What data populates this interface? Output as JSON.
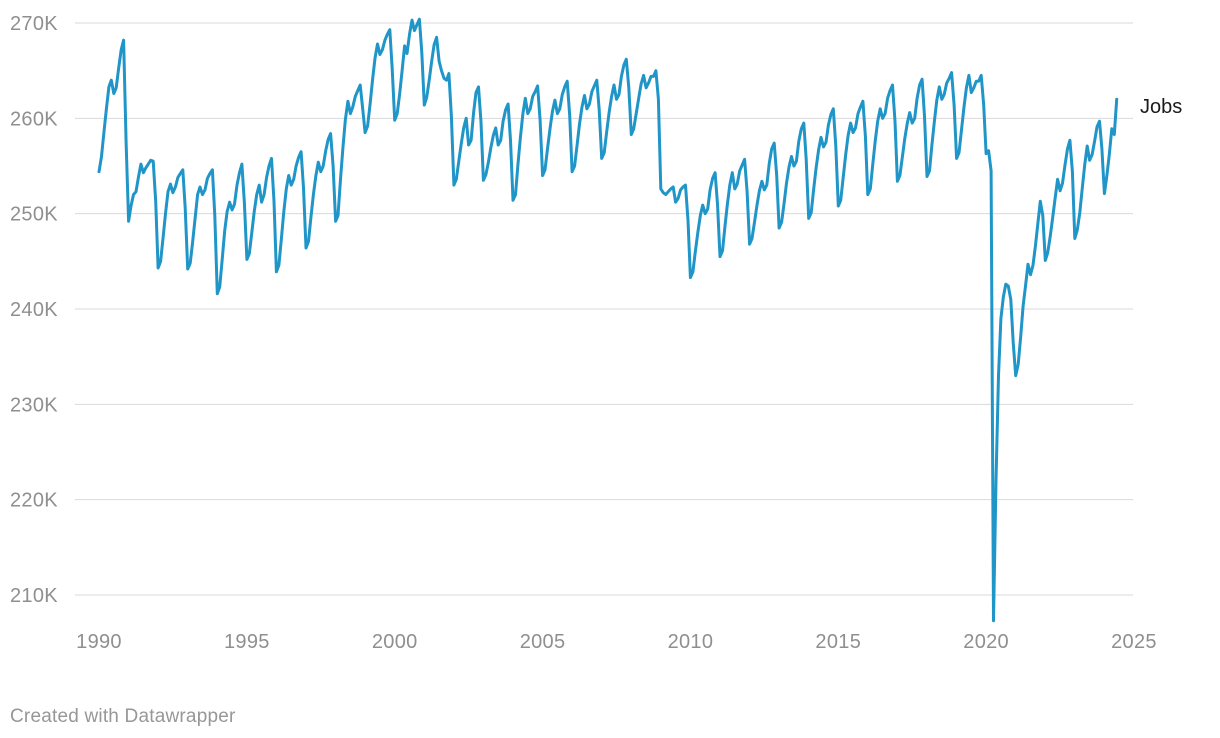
{
  "page": {
    "background": "#ffffff",
    "footer_credit": "Created with Datawrapper"
  },
  "chart_data": {
    "type": "line",
    "title": "",
    "xlabel": "",
    "ylabel": "",
    "grid": "horizontal",
    "legend_position": "line-end-label",
    "line_color": "#2095c8",
    "grid_color": "#d9d9d9",
    "axis_text_color": "#8f8f8f",
    "label_text_color": "#1a1a1a",
    "footer_text_color": "#979797",
    "ylim": [
      206,
      271.5
    ],
    "xlim": [
      1989.2,
      2025.5
    ],
    "y_ticks": {
      "values": [
        270,
        260,
        250,
        240,
        230,
        220,
        210
      ],
      "labels": [
        "270K",
        "260K",
        "250K",
        "240K",
        "230K",
        "220K",
        "210K"
      ]
    },
    "x_ticks": {
      "values": [
        1990,
        1995,
        2000,
        2005,
        2010,
        2015,
        2020,
        2025
      ],
      "labels": [
        "1990",
        "1995",
        "2000",
        "2005",
        "2010",
        "2015",
        "2020",
        "2025"
      ]
    },
    "series": [
      {
        "name": "Jobs",
        "unit": "thousands (K)",
        "start": "1990-01",
        "frequency": "monthly",
        "values": [
          254.4,
          256.0,
          258.5,
          261.0,
          263.3,
          264.0,
          262.6,
          263.2,
          265.3,
          267.2,
          268.2,
          257.5,
          249.2,
          250.8,
          252.0,
          252.3,
          253.8,
          255.2,
          254.3,
          254.8,
          255.2,
          255.6,
          255.5,
          251.3,
          244.3,
          245.0,
          247.5,
          250.0,
          252.3,
          253.1,
          252.2,
          252.8,
          253.8,
          254.2,
          254.6,
          250.6,
          244.2,
          244.8,
          247.0,
          249.5,
          252.0,
          252.8,
          252.0,
          252.5,
          253.7,
          254.2,
          254.6,
          249.8,
          241.6,
          242.3,
          245.2,
          248.2,
          250.2,
          251.2,
          250.4,
          251.0,
          253.0,
          254.3,
          255.2,
          251.1,
          245.2,
          245.8,
          248.0,
          250.2,
          252.0,
          253.0,
          251.2,
          252.0,
          253.8,
          255.0,
          255.8,
          251.3,
          243.9,
          244.6,
          247.4,
          250.2,
          252.6,
          254.0,
          253.0,
          253.6,
          255.0,
          255.9,
          256.5,
          252.7,
          246.4,
          247.1,
          249.6,
          252.0,
          254.0,
          255.4,
          254.4,
          255.0,
          256.6,
          257.8,
          258.4,
          255.0,
          249.2,
          249.8,
          253.6,
          257.0,
          259.9,
          261.8,
          260.5,
          261.2,
          262.3,
          262.9,
          263.5,
          261.0,
          258.5,
          259.2,
          261.5,
          264.0,
          266.3,
          267.8,
          266.7,
          267.2,
          268.2,
          268.8,
          269.3,
          265.2,
          259.8,
          260.5,
          262.5,
          265.0,
          267.6,
          266.8,
          268.8,
          270.3,
          269.2,
          269.8,
          270.4,
          266.9,
          261.4,
          262.2,
          264.0,
          266.0,
          267.7,
          268.5,
          266.0,
          265.0,
          264.2,
          264.0,
          264.7,
          260.2,
          253.0,
          253.6,
          255.5,
          257.3,
          259.0,
          260.0,
          257.2,
          257.7,
          260.6,
          262.7,
          263.3,
          259.6,
          253.5,
          254.1,
          255.4,
          256.9,
          258.2,
          259.0,
          257.2,
          257.7,
          259.7,
          260.9,
          261.5,
          257.7,
          251.4,
          252.0,
          255.1,
          258.0,
          260.5,
          262.1,
          260.5,
          261.0,
          262.3,
          262.8,
          263.4,
          259.8,
          254.0,
          254.6,
          256.8,
          258.9,
          260.7,
          261.9,
          260.5,
          261.0,
          262.5,
          263.3,
          263.9,
          260.3,
          254.4,
          255.0,
          257.2,
          259.4,
          261.2,
          262.4,
          261.0,
          261.5,
          262.8,
          263.4,
          264.0,
          260.9,
          255.8,
          256.4,
          258.5,
          260.6,
          262.3,
          263.5,
          262.0,
          262.5,
          264.4,
          265.6,
          266.2,
          263.2,
          258.3,
          258.9,
          260.5,
          262.1,
          263.6,
          264.5,
          263.2,
          263.7,
          264.4,
          264.4,
          265.0,
          262.0,
          252.6,
          252.2,
          252.0,
          252.3,
          252.6,
          252.8,
          251.2,
          251.6,
          252.5,
          252.8,
          253.0,
          249.3,
          243.3,
          243.9,
          246.0,
          248.0,
          249.8,
          250.9,
          250.0,
          250.5,
          252.5,
          253.7,
          254.3,
          251.0,
          245.5,
          246.1,
          248.6,
          251.0,
          253.0,
          254.3,
          252.6,
          253.1,
          254.5,
          255.1,
          255.7,
          252.3,
          246.8,
          247.4,
          249.1,
          250.9,
          252.4,
          253.4,
          252.5,
          253.0,
          255.3,
          256.8,
          257.4,
          254.0,
          248.5,
          249.1,
          251.1,
          253.2,
          254.9,
          256.0,
          255.0,
          255.5,
          257.6,
          258.9,
          259.5,
          255.7,
          249.5,
          250.1,
          252.5,
          254.8,
          256.7,
          258.0,
          257.0,
          257.5,
          259.3,
          260.4,
          261.0,
          257.1,
          250.8,
          251.4,
          253.8,
          256.2,
          258.2,
          259.5,
          258.5,
          259.0,
          260.5,
          261.2,
          261.8,
          258.1,
          252.0,
          252.6,
          255.2,
          257.6,
          259.7,
          261.0,
          260.0,
          260.5,
          262.1,
          262.9,
          263.5,
          259.7,
          253.4,
          254.0,
          255.9,
          257.9,
          259.5,
          260.6,
          259.5,
          260.0,
          262.1,
          263.5,
          264.1,
          260.2,
          253.9,
          254.5,
          257.2,
          259.7,
          261.9,
          263.3,
          262.0,
          262.5,
          263.7,
          264.2,
          264.8,
          261.4,
          255.8,
          256.4,
          258.8,
          261.2,
          263.2,
          264.5,
          262.7,
          263.2,
          263.9,
          263.9,
          264.5,
          261.4,
          256.3,
          256.6,
          254.5,
          207.3,
          222.0,
          233.0,
          239.0,
          241.3,
          242.6,
          242.4,
          241.0,
          236.5,
          233.0,
          234.2,
          237.0,
          240.3,
          242.5,
          244.7,
          243.6,
          244.6,
          246.6,
          249.0,
          251.3,
          249.8,
          245.1,
          245.9,
          247.6,
          249.6,
          251.6,
          253.6,
          252.4,
          253.2,
          255.1,
          256.8,
          257.7,
          254.4,
          247.4,
          248.3,
          250.1,
          252.6,
          255.1,
          257.1,
          255.6,
          256.2,
          257.6,
          259.1,
          259.7,
          256.8,
          252.1,
          254.0,
          256.2,
          258.9,
          258.3,
          262.0
        ]
      }
    ],
    "annotations": [
      {
        "text": "Jobs",
        "position": "line-end"
      }
    ]
  }
}
